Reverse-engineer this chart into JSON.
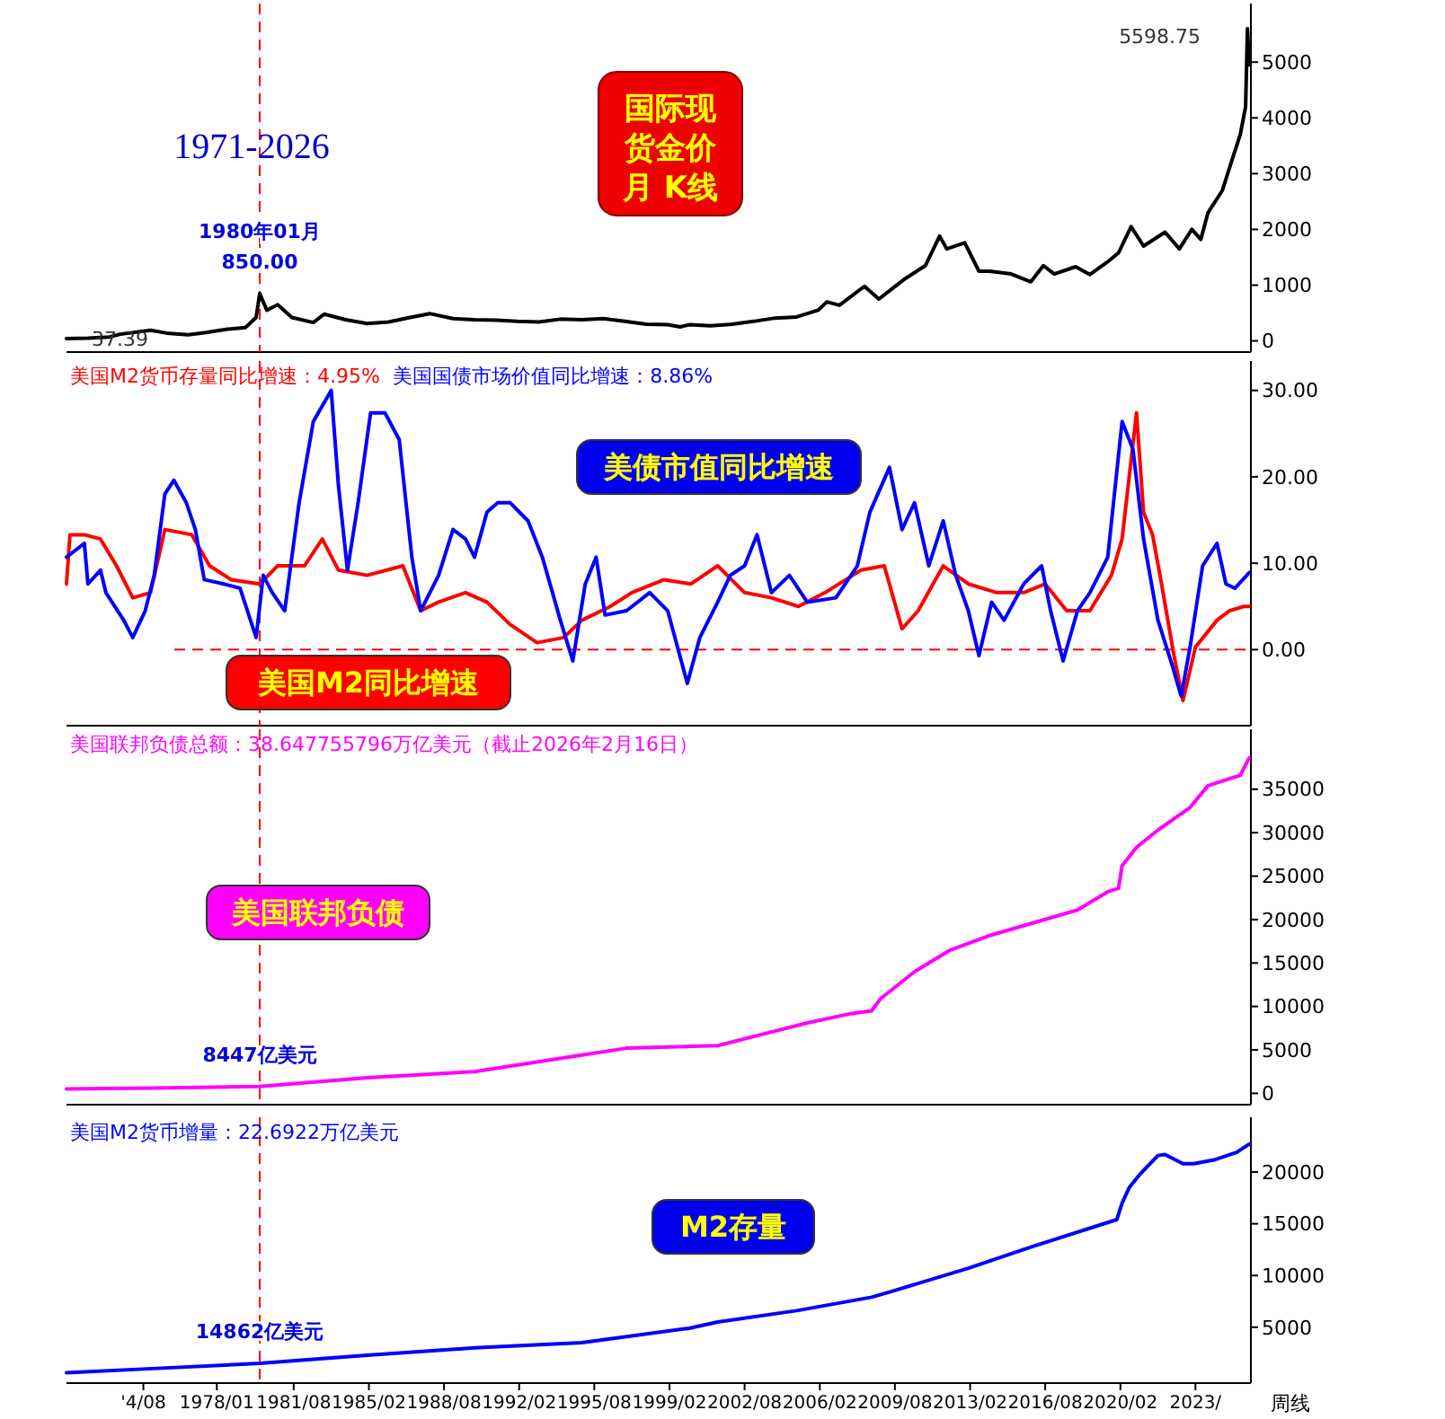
{
  "chart_data": [
    {
      "type": "line",
      "title": "国际现货金价月 K线",
      "annotations": [
        "1971-2026",
        {
          "text": "1980年01月\n850.00",
          "x": "1980-01",
          "y": 850
        },
        {
          "text": "5598.75",
          "x": "2026-01",
          "y": 5600
        },
        {
          "text": "37.39",
          "x": "1971-01",
          "y": 40
        }
      ],
      "xlim": [
        "1971-01",
        "2026-03"
      ],
      "ylim": [
        -200,
        6050
      ],
      "yticks": [
        0,
        1000,
        2000,
        3000,
        4000,
        5000
      ],
      "tick_labels": "y",
      "ref_lines": [
        {
          "axis": "x",
          "value": "1980-01",
          "color": "#ff0000",
          "line_style": "dashed"
        }
      ],
      "series": [
        {
          "color": "#000000",
          "x": [
            "1971-01",
            "1972-01",
            "1973-01",
            "1973-07",
            "1974-12",
            "1975-09",
            "1976-09",
            "1977-07",
            "1978-07",
            "1979-05",
            "1979-11",
            "1980-01",
            "1980-05",
            "1980-11",
            "1981-07",
            "1982-07",
            "1983-01",
            "1984-01",
            "1985-01",
            "1986-01",
            "1987-01",
            "1987-12",
            "1989-01",
            "1990-01",
            "1991-01",
            "1992-01",
            "1993-01",
            "1994-01",
            "1995-01",
            "1996-01",
            "1997-01",
            "1998-01",
            "1999-01",
            "1999-08",
            "2000-01",
            "2001-01",
            "2002-01",
            "2003-01",
            "2004-01",
            "2005-01",
            "2006-01",
            "2006-06",
            "2007-01",
            "2008-03",
            "2008-11",
            "2009-07",
            "2010-01",
            "2011-01",
            "2011-09",
            "2012-01",
            "2012-11",
            "2013-07",
            "2014-01",
            "2015-01",
            "2015-12",
            "2016-07",
            "2017-01",
            "2018-01",
            "2018-09",
            "2019-07",
            "2020-01",
            "2020-08",
            "2021-03",
            "2022-03",
            "2022-11",
            "2023-06",
            "2023-11",
            "2024-03",
            "2024-11",
            "2025-05",
            "2025-09",
            "2025-12",
            "2026-01",
            "2026-02"
          ],
          "values": [
            40,
            50,
            70,
            120,
            190,
            140,
            110,
            150,
            210,
            240,
            420,
            850,
            550,
            650,
            420,
            330,
            480,
            380,
            310,
            340,
            420,
            490,
            400,
            380,
            370,
            350,
            340,
            390,
            380,
            400,
            350,
            300,
            290,
            250,
            290,
            270,
            300,
            350,
            410,
            430,
            550,
            700,
            640,
            980,
            750,
            950,
            1100,
            1350,
            1880,
            1650,
            1760,
            1250,
            1250,
            1200,
            1060,
            1350,
            1200,
            1330,
            1190,
            1420,
            1580,
            2050,
            1700,
            1950,
            1650,
            2000,
            1820,
            2300,
            2700,
            3300,
            3700,
            4200,
            5600,
            4950
          ]
        }
      ]
    },
    {
      "type": "line",
      "legend": "top left",
      "annotations": [
        "美债市值同比增速",
        "美国M2同比增速"
      ],
      "xlim": [
        "1971-01",
        "2026-03"
      ],
      "ylim": [
        -8.8,
        33.4
      ],
      "yticks": [
        {
          "value": 0,
          "label": "0.00"
        },
        {
          "value": 10,
          "label": "10.00"
        },
        {
          "value": 20,
          "label": "20.00"
        },
        {
          "value": 30,
          "label": "30.00"
        }
      ],
      "tick_labels": "y",
      "ref_lines": [
        {
          "axis": "x",
          "value": "1980-01",
          "color": "#ff0000",
          "line_style": "dashed"
        },
        {
          "axis": "y",
          "value": 0,
          "color": "#ff0000",
          "line_style": "dashed"
        }
      ],
      "series": [
        {
          "name": "美国M2货币存量同比增速：4.95%",
          "color": "#ff0000",
          "x": [
            "1971-01",
            "1971-03",
            "1971-11",
            "1972-08",
            "1973-05",
            "1974-02",
            "1974-12",
            "1975-08",
            "1976-11",
            "1977-09",
            "1978-09",
            "1980-01",
            "1980-11",
            "1982-02",
            "1982-12",
            "1983-09",
            "1985-01",
            "1986-09",
            "1987-07",
            "1988-05",
            "1989-08",
            "1990-08",
            "1991-09",
            "1992-12",
            "1994-03",
            "1995-01",
            "1996-05",
            "1997-05",
            "1998-11",
            "2000-02",
            "2001-05",
            "2002-08",
            "2003-11",
            "2005-02",
            "2006-05",
            "2008-01",
            "2009-02",
            "2009-12",
            "2010-09",
            "2011-11",
            "2013-01",
            "2014-05",
            "2015-08",
            "2016-08",
            "2017-08",
            "2018-09",
            "2019-09",
            "2020-03",
            "2020-11",
            "2021-03",
            "2021-08",
            "2022-01",
            "2022-08",
            "2023-01",
            "2023-08",
            "2024-08",
            "2025-03",
            "2025-11",
            "2026-02"
          ],
          "values": [
            7.6,
            13.3,
            13.3,
            12.8,
            9.7,
            6,
            6.6,
            13.9,
            13.3,
            9.7,
            8.1,
            7.6,
            9.7,
            9.7,
            12.8,
            9.2,
            8.6,
            9.7,
            4.5,
            5.5,
            6.6,
            5.5,
            2.9,
            0.8,
            1.4,
            3.4,
            5,
            6.6,
            8.1,
            7.6,
            9.7,
            6.6,
            6,
            5,
            6.6,
            9.2,
            9.7,
            2.4,
            4.5,
            9.7,
            7.6,
            6.6,
            6.6,
            7.6,
            4.5,
            4.5,
            8.6,
            12.8,
            27.4,
            15.9,
            13.3,
            7.6,
            -0.7,
            -5.9,
            0.3,
            3.4,
            4.5,
            5,
            5
          ]
        },
        {
          "name": "美国国债市场价值同比增速：8.86%",
          "color": "#0000ff",
          "x": [
            "1971-01",
            "1971-11",
            "1972-01",
            "1972-08",
            "1972-11",
            "1973-09",
            "1974-02",
            "1974-09",
            "1975-02",
            "1975-08",
            "1976-01",
            "1976-08",
            "1977-01",
            "1977-06",
            "1978-05",
            "1979-02",
            "1979-11",
            "1980-03",
            "1980-08",
            "1981-03",
            "1981-11",
            "1982-07",
            "1983-05",
            "1983-09",
            "1984-02",
            "1984-08",
            "1985-03",
            "1985-11",
            "1986-07",
            "1987-02",
            "1987-07",
            "1988-05",
            "1989-01",
            "1989-08",
            "1990-01",
            "1990-08",
            "1991-02",
            "1991-09",
            "1992-07",
            "1993-03",
            "1994-01",
            "1994-08",
            "1995-03",
            "1995-09",
            "1996-02",
            "1997-02",
            "1998-03",
            "1999-01",
            "1999-12",
            "2000-07",
            "2001-05",
            "2001-12",
            "2002-08",
            "2003-03",
            "2003-11",
            "2004-09",
            "2005-07",
            "2006-11",
            "2007-11",
            "2008-06",
            "2009-05",
            "2009-12",
            "2010-07",
            "2011-03",
            "2011-11",
            "2012-06",
            "2013-01",
            "2013-07",
            "2014-02",
            "2014-09",
            "2015-08",
            "2016-06",
            "2016-11",
            "2017-06",
            "2018-02",
            "2018-09",
            "2019-07",
            "2020-03",
            "2020-09",
            "2021-03",
            "2021-11",
            "2022-07",
            "2022-12",
            "2023-05",
            "2023-12",
            "2024-08",
            "2025-01",
            "2025-06",
            "2026-02"
          ],
          "values": [
            10.7,
            12.3,
            7.6,
            9.2,
            6.6,
            3.4,
            1.4,
            4.5,
            8.6,
            18,
            19.6,
            17,
            13.9,
            8.1,
            7.6,
            7.1,
            1.4,
            8.6,
            6.6,
            4.5,
            17,
            26.4,
            30,
            19,
            9.2,
            17,
            27.4,
            27.4,
            24.3,
            10.7,
            4.5,
            8.6,
            13.9,
            12.8,
            10.7,
            15.9,
            17,
            17,
            14.9,
            10.7,
            3.4,
            -1.3,
            7.6,
            10.7,
            4,
            4.5,
            6.6,
            4.5,
            -3.9,
            1.4,
            5.5,
            8.6,
            9.7,
            13.3,
            6.6,
            8.6,
            5.5,
            6,
            9.7,
            15.9,
            21.1,
            13.9,
            17,
            9.7,
            14.9,
            8.6,
            4.5,
            -0.7,
            5.5,
            3.4,
            7.6,
            9.7,
            4.5,
            -1.3,
            4.5,
            6.6,
            10.7,
            26.4,
            23.2,
            12.8,
            3.4,
            -1.8,
            -5.4,
            0.3,
            9.7,
            12.3,
            7.6,
            7.1,
            8.9
          ]
        }
      ]
    },
    {
      "type": "line",
      "legend": "top left",
      "annotations": [
        "美国联邦负债",
        {
          "text": "8447亿美元",
          "x": "1980-01",
          "y": 800
        }
      ],
      "xlim": [
        "1971-01",
        "2026-03"
      ],
      "ylim": [
        -1300,
        41900
      ],
      "yticks": [
        0,
        5000,
        10000,
        15000,
        20000,
        25000,
        30000,
        35000
      ],
      "tick_labels": "y",
      "ref_lines": [
        {
          "axis": "x",
          "value": "1980-01",
          "color": "#ff0000",
          "line_style": "dashed"
        }
      ],
      "series": [
        {
          "name": "美国联邦负债总额：38.647755796万亿美元（截止2026年2月16日）",
          "color": "#ff00ff",
          "x": [
            "1971-01",
            "1975-01",
            "1980-01",
            "1985-01",
            "1990-01",
            "1995-01",
            "1997-02",
            "2001-05",
            "2003-06",
            "2005-07",
            "2007-08",
            "2008-07",
            "2008-12",
            "2010-07",
            "2012-03",
            "2013-12",
            "2016-01",
            "2018-02",
            "2019-07",
            "2020-01",
            "2020-03",
            "2020-11",
            "2021-11",
            "2023-05",
            "2024-03",
            "2025-06",
            "2025-09",
            "2026-02"
          ],
          "values": [
            500,
            600,
            800,
            1800,
            2500,
            4400,
            5200,
            5500,
            6800,
            8100,
            9200,
            9500,
            10900,
            14000,
            16500,
            18100,
            19600,
            21100,
            23200,
            23600,
            26200,
            28300,
            30300,
            32900,
            35400,
            36400,
            36600,
            38600
          ]
        }
      ]
    },
    {
      "type": "line",
      "legend": "top left",
      "annotations": [
        "M2存量",
        "周线",
        {
          "text": "14862亿美元",
          "x": "1980-01",
          "y": 1500
        }
      ],
      "xlim": [
        "1971-01",
        "2026-03"
      ],
      "ylim": [
        -400,
        25300
      ],
      "yticks": [
        5000,
        10000,
        15000,
        20000
      ],
      "xticks": [
        {
          "value": "1974-08",
          "label": "'4/08"
        },
        {
          "value": "1978-01",
          "label": "1978/01"
        },
        {
          "value": "1981-08",
          "label": "1981/08"
        },
        {
          "value": "1985-02",
          "label": "1985/02"
        },
        {
          "value": "1988-08",
          "label": "1988/08"
        },
        {
          "value": "1992-02",
          "label": "1992/02"
        },
        {
          "value": "1995-08",
          "label": "1995/08"
        },
        {
          "value": "1999-02",
          "label": "1999/02"
        },
        {
          "value": "2002-08",
          "label": "2002/08"
        },
        {
          "value": "2006-02",
          "label": "2006/02"
        },
        {
          "value": "2009-08",
          "label": "2009/08"
        },
        {
          "value": "2013-02",
          "label": "2013/02"
        },
        {
          "value": "2016-08",
          "label": "2016/08"
        },
        {
          "value": "2020-02",
          "label": "2020/02"
        },
        {
          "value": "2023-08",
          "label": "2023/"
        }
      ],
      "ref_lines": [
        {
          "axis": "x",
          "value": "1980-01",
          "color": "#ff0000",
          "line_style": "dashed"
        }
      ],
      "series": [
        {
          "name": "美国M2货币增量：22.6922万亿美元",
          "color": "#0000ff",
          "x": [
            "1971-01",
            "1975-01",
            "1980-01",
            "1985-01",
            "1990-01",
            "1995-01",
            "2000-01",
            "2001-05",
            "2005-01",
            "2008-07",
            "2009-05",
            "2013-01",
            "2016-01",
            "2019-12",
            "2020-03",
            "2020-07",
            "2021-01",
            "2021-11",
            "2022-03",
            "2023-01",
            "2023-07",
            "2024-07",
            "2025-07",
            "2026-02"
          ],
          "values": [
            600,
            1000,
            1500,
            2300,
            3000,
            3500,
            4900,
            5500,
            6600,
            7900,
            8400,
            10700,
            12800,
            15400,
            17000,
            18500,
            19800,
            21600,
            21700,
            20800,
            20800,
            21200,
            21900,
            22700
          ]
        }
      ]
    }
  ]
}
